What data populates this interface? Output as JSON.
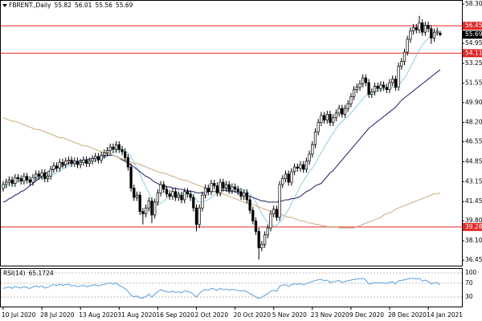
{
  "chart_data": {
    "type": "candlestick",
    "title": "FBRENT.,Daily",
    "categories": [
      "10 Jul 2020",
      null,
      null,
      null,
      null,
      null,
      null,
      null,
      null,
      null,
      null,
      null,
      null,
      "28 Jul 2020",
      null,
      null,
      null,
      null,
      null,
      null,
      null,
      null,
      null,
      null,
      null,
      null,
      "13 Aug 2020",
      null,
      null,
      null,
      null,
      null,
      null,
      null,
      null,
      null,
      null,
      null,
      null,
      "31 Aug 2020",
      null,
      null,
      null,
      null,
      null,
      null,
      null,
      null,
      null,
      null,
      null,
      null,
      "16 Sep 2020",
      null,
      null,
      null,
      null,
      null,
      null,
      null,
      null,
      null,
      null,
      null,
      null,
      "2 Oct 2020",
      null,
      null,
      null,
      null,
      null,
      null,
      null,
      null,
      null,
      null,
      null,
      null,
      "20 Oct 2020",
      null,
      null,
      null,
      null,
      null,
      null,
      null,
      null,
      null,
      null,
      null,
      null,
      "5 Nov 2020",
      null,
      null,
      null,
      null,
      null,
      null,
      null,
      null,
      null,
      null,
      null,
      null,
      "23 Nov 2020",
      null,
      null,
      null,
      null,
      null,
      null,
      null,
      null,
      null,
      null,
      null,
      null,
      "9 Dec 2020",
      null,
      null,
      null,
      null,
      null,
      null,
      null,
      null,
      null,
      null,
      null,
      null,
      "28 Dec 2020",
      null,
      null,
      null,
      null,
      null,
      null,
      null,
      null,
      null,
      null,
      null,
      null,
      "14 Jan 2021",
      null,
      null,
      null,
      null
    ],
    "open": [
      42.6,
      42.9,
      43.1,
      43.3,
      43.0,
      43.5,
      43.4,
      43.2,
      43.6,
      43.3,
      43.1,
      43.5,
      43.8,
      43.6,
      43.9,
      43.4,
      43.6,
      44.2,
      44.5,
      44.3,
      44.8,
      44.6,
      44.9,
      45.0,
      44.7,
      44.9,
      44.6,
      44.8,
      45.0,
      44.7,
      44.9,
      45.1,
      45.3,
      45.0,
      45.4,
      45.6,
      45.8,
      46.1,
      45.9,
      46.3,
      45.9,
      45.7,
      45.2,
      44.4,
      42.6,
      41.8,
      42.0,
      40.6,
      40.4,
      40.9,
      41.5,
      40.3,
      41.4,
      42.2,
      42.9,
      42.5,
      42.1,
      41.9,
      42.3,
      41.8,
      42.0,
      41.6,
      42.3,
      42.1,
      41.8,
      40.9,
      39.5,
      40.9,
      42.0,
      42.6,
      42.3,
      43.0,
      42.8,
      42.2,
      43.1,
      42.6,
      42.9,
      42.4,
      42.7,
      42.5,
      42.3,
      41.9,
      42.2,
      41.6,
      40.7,
      39.8,
      38.9,
      37.5,
      37.8,
      38.6,
      39.2,
      40.4,
      40.8,
      40.1,
      42.9,
      43.4,
      43.8,
      43.1,
      44.0,
      44.4,
      44.3,
      44.6,
      44.2,
      44.9,
      45.5,
      46.3,
      47.4,
      48.2,
      48.8,
      48.4,
      48.9,
      48.2,
      48.6,
      49.0,
      49.4,
      48.9,
      49.4,
      49.8,
      50.4,
      51.0,
      51.2,
      51.5,
      52.0,
      51.6,
      50.6,
      50.8,
      51.3,
      51.1,
      51.4,
      51.2,
      51.0,
      51.6,
      51.9,
      51.2,
      53.0,
      53.4,
      54.2,
      55.3,
      56.0,
      56.3,
      56.1,
      56.7,
      55.9,
      56.5,
      56.2,
      55.4,
      55.9,
      55.82
    ],
    "high": [
      43.2,
      43.4,
      43.6,
      43.6,
      43.8,
      43.8,
      43.7,
      43.9,
      43.9,
      43.6,
      43.8,
      44.1,
      44.1,
      44.2,
      44.2,
      43.9,
      44.5,
      44.8,
      44.8,
      45.1,
      45.1,
      45.2,
      45.3,
      45.3,
      45.2,
      45.2,
      45.1,
      45.3,
      45.3,
      45.2,
      45.4,
      45.6,
      45.6,
      45.7,
      45.9,
      46.1,
      46.4,
      46.4,
      46.6,
      46.6,
      46.2,
      46.0,
      45.5,
      44.7,
      42.9,
      42.3,
      42.3,
      40.9,
      41.2,
      41.8,
      41.8,
      41.7,
      42.5,
      43.2,
      43.2,
      42.8,
      42.4,
      42.6,
      42.6,
      42.3,
      42.3,
      42.6,
      42.6,
      42.4,
      42.1,
      41.2,
      41.2,
      42.3,
      42.9,
      42.9,
      43.3,
      43.3,
      43.1,
      43.4,
      43.4,
      43.2,
      43.2,
      43.0,
      43.0,
      42.8,
      42.6,
      42.5,
      42.5,
      41.9,
      41.0,
      40.1,
      39.2,
      38.1,
      38.9,
      39.5,
      40.7,
      41.1,
      41.1,
      43.2,
      43.7,
      44.1,
      44.1,
      44.3,
      44.7,
      44.7,
      44.9,
      44.9,
      45.2,
      45.8,
      46.6,
      47.7,
      48.5,
      49.1,
      49.1,
      49.2,
      49.2,
      48.9,
      49.3,
      49.7,
      49.7,
      49.7,
      50.1,
      50.7,
      51.3,
      51.5,
      51.8,
      52.3,
      52.3,
      51.9,
      51.1,
      51.6,
      51.6,
      51.7,
      51.7,
      51.5,
      51.9,
      52.2,
      52.2,
      53.3,
      53.7,
      54.5,
      55.6,
      56.3,
      56.6,
      56.6,
      57.3,
      57.0,
      56.8,
      56.8,
      56.5,
      56.2,
      56.3,
      56.01
    ],
    "low": [
      42.3,
      42.6,
      42.8,
      42.7,
      42.7,
      43.1,
      42.9,
      42.9,
      43.0,
      42.8,
      42.8,
      43.2,
      43.3,
      43.3,
      43.1,
      43.1,
      43.3,
      43.9,
      44.0,
      44.0,
      44.3,
      44.3,
      44.6,
      44.4,
      44.4,
      44.3,
      44.3,
      44.5,
      44.4,
      44.4,
      44.6,
      44.8,
      44.7,
      44.7,
      45.1,
      45.3,
      45.5,
      45.6,
      45.6,
      45.6,
      45.4,
      44.9,
      44.1,
      42.3,
      41.5,
      41.5,
      40.3,
      39.5,
      40.1,
      40.6,
      39.6,
      40.0,
      41.1,
      41.9,
      42.2,
      41.8,
      41.6,
      41.6,
      41.5,
      41.5,
      41.3,
      41.3,
      41.8,
      41.5,
      40.6,
      38.9,
      39.2,
      40.6,
      41.7,
      42.0,
      42.0,
      42.5,
      41.9,
      41.9,
      42.3,
      42.3,
      42.1,
      42.1,
      42.2,
      42.0,
      41.6,
      41.6,
      41.3,
      40.4,
      39.5,
      38.6,
      36.5,
      37.2,
      37.5,
      38.3,
      38.9,
      40.1,
      39.8,
      39.8,
      42.6,
      43.1,
      42.8,
      42.8,
      43.7,
      44.0,
      44.0,
      43.9,
      43.9,
      44.6,
      45.2,
      46.0,
      47.1,
      47.9,
      48.1,
      48.1,
      47.9,
      47.9,
      48.3,
      48.7,
      48.6,
      48.6,
      49.1,
      49.5,
      50.1,
      50.7,
      50.9,
      51.2,
      51.3,
      50.3,
      50.3,
      50.5,
      50.8,
      50.8,
      50.9,
      50.7,
      50.7,
      51.3,
      50.9,
      50.9,
      52.7,
      53.1,
      53.9,
      55.0,
      55.7,
      55.8,
      55.8,
      55.6,
      55.6,
      55.9,
      54.9,
      55.1,
      55.6,
      55.56
    ],
    "close": [
      42.9,
      43.1,
      43.3,
      43.0,
      43.5,
      43.4,
      43.2,
      43.6,
      43.3,
      43.1,
      43.5,
      43.8,
      43.6,
      43.9,
      43.4,
      43.6,
      44.2,
      44.5,
      44.3,
      44.8,
      44.6,
      44.9,
      45.0,
      44.7,
      44.9,
      44.6,
      44.8,
      45.0,
      44.7,
      44.9,
      45.1,
      45.3,
      45.0,
      45.4,
      45.6,
      45.8,
      46.1,
      45.9,
      46.3,
      45.9,
      45.7,
      45.2,
      44.4,
      42.6,
      41.8,
      42.0,
      40.6,
      40.4,
      40.9,
      41.5,
      40.3,
      41.4,
      42.2,
      42.9,
      42.5,
      42.1,
      41.9,
      42.3,
      41.8,
      42.0,
      41.6,
      42.3,
      42.1,
      41.8,
      40.9,
      39.5,
      40.9,
      42.0,
      42.6,
      42.3,
      43.0,
      42.8,
      42.2,
      43.1,
      42.6,
      42.9,
      42.4,
      42.7,
      42.5,
      42.3,
      41.9,
      42.2,
      41.6,
      40.7,
      39.8,
      38.9,
      37.5,
      37.8,
      38.6,
      39.2,
      40.4,
      40.8,
      40.1,
      42.9,
      43.4,
      43.8,
      43.1,
      44.0,
      44.4,
      44.3,
      44.6,
      44.2,
      44.9,
      45.5,
      46.3,
      47.4,
      48.2,
      48.8,
      48.4,
      48.9,
      48.2,
      48.6,
      49.0,
      49.4,
      48.9,
      49.4,
      49.8,
      50.4,
      51.0,
      51.2,
      51.5,
      52.0,
      51.6,
      50.6,
      50.8,
      51.3,
      51.1,
      51.4,
      51.2,
      51.0,
      51.6,
      51.9,
      51.2,
      53.0,
      53.4,
      54.2,
      55.3,
      56.0,
      56.3,
      56.1,
      56.7,
      55.9,
      56.5,
      56.2,
      55.4,
      55.9,
      56.0,
      55.69
    ],
    "series": [
      {
        "color": "#8ccfdc",
        "values": [
          42.6,
          42.7,
          42.8,
          42.9,
          43.0,
          43.1,
          43.2,
          43.3,
          43.3,
          43.3,
          43.3,
          43.4,
          43.4,
          43.5,
          43.5,
          43.6,
          43.7,
          43.8,
          43.9,
          44.1,
          44.2,
          44.4,
          44.5,
          44.6,
          44.7,
          44.7,
          44.8,
          44.8,
          44.8,
          44.8,
          44.9,
          44.9,
          45.0,
          45.1,
          45.2,
          45.3,
          45.5,
          45.6,
          45.8,
          45.9,
          45.9,
          45.8,
          45.6,
          45.3,
          44.8,
          44.3,
          43.8,
          43.2,
          42.7,
          42.2,
          41.6,
          41.3,
          41.2,
          41.3,
          41.5,
          41.7,
          41.9,
          42.1,
          42.2,
          42.1,
          42.1,
          42.1,
          42.1,
          42.0,
          41.9,
          41.6,
          41.4,
          41.4,
          41.5,
          41.6,
          41.8,
          42.0,
          42.2,
          42.4,
          42.5,
          42.6,
          42.7,
          42.7,
          42.6,
          42.6,
          42.5,
          42.4,
          42.3,
          42.1,
          41.8,
          41.4,
          40.9,
          40.4,
          40.0,
          39.7,
          39.5,
          39.4,
          39.4,
          39.7,
          40.0,
          40.4,
          40.8,
          41.3,
          41.8,
          42.3,
          42.8,
          43.2,
          43.6,
          44.0,
          44.3,
          44.7,
          45.2,
          45.6,
          46.1,
          46.5,
          46.9,
          47.3,
          47.7,
          48.0,
          48.3,
          48.5,
          48.7,
          49.0,
          49.3,
          49.6,
          49.9,
          50.2,
          50.5,
          50.6,
          50.7,
          50.8,
          50.9,
          51.0,
          51.1,
          51.1,
          51.1,
          51.2,
          51.2,
          51.4,
          51.7,
          52.0,
          52.4,
          52.9,
          53.4,
          53.9,
          54.4,
          54.8,
          55.1,
          55.4,
          55.6,
          55.7,
          55.8,
          55.9
        ]
      },
      {
        "color": "#1c1c6a",
        "values": [
          41.4,
          41.5,
          41.7,
          41.8,
          42.0,
          42.1,
          42.3,
          42.4,
          42.6,
          42.8,
          43.0,
          43.2,
          43.4,
          43.6,
          43.8,
          44.0,
          44.1,
          44.2,
          44.3,
          44.4,
          44.5,
          44.6,
          44.7,
          44.8,
          44.8,
          44.9,
          44.9,
          45.0,
          45.0,
          45.1,
          45.1,
          45.2,
          45.2,
          45.3,
          45.3,
          45.4,
          45.4,
          45.4,
          45.3,
          45.2,
          45.0,
          44.9,
          44.7,
          44.6,
          44.4,
          44.2,
          44.0,
          43.8,
          43.6,
          43.5,
          43.3,
          43.1,
          43.0,
          42.8,
          42.8,
          42.7,
          42.7,
          42.6,
          42.6,
          42.5,
          42.5,
          42.4,
          42.4,
          42.3,
          42.3,
          42.2,
          42.2,
          42.2,
          42.2,
          42.3,
          42.3,
          42.3,
          42.4,
          42.4,
          42.4,
          42.4,
          42.3,
          42.3,
          42.3,
          42.2,
          42.2,
          42.1,
          42.0,
          41.9,
          41.8,
          41.7,
          41.6,
          41.5,
          41.5,
          41.4,
          41.4,
          41.4,
          41.4,
          41.5,
          41.5,
          41.6,
          41.6,
          41.7,
          41.7,
          41.8,
          41.9,
          42.1,
          42.3,
          42.4,
          42.6,
          42.8,
          42.9,
          43.0,
          43.3,
          43.6,
          43.9,
          44.1,
          44.4,
          44.7,
          45.0,
          45.3,
          45.6,
          45.9,
          46.2,
          46.5,
          46.8,
          47.1,
          47.4,
          47.7,
          47.9,
          48.1,
          48.3,
          48.5,
          48.7,
          48.9,
          49.1,
          49.3,
          49.5,
          49.8,
          50.1,
          50.3,
          50.5,
          50.7,
          50.9,
          51.1,
          51.3,
          51.5,
          51.7,
          51.9,
          52.1,
          52.3,
          52.5,
          52.7
        ]
      },
      {
        "color": "#c9ab7e",
        "values": [
          48.6,
          48.5,
          48.4,
          48.3,
          48.3,
          48.2,
          48.1,
          48.0,
          47.9,
          47.8,
          47.7,
          47.6,
          47.6,
          47.5,
          47.4,
          47.3,
          47.2,
          47.1,
          47.0,
          46.9,
          46.9,
          46.8,
          46.7,
          46.6,
          46.5,
          46.4,
          46.3,
          46.2,
          46.2,
          46.1,
          46.0,
          45.9,
          45.8,
          45.7,
          45.6,
          45.5,
          45.5,
          45.4,
          45.3,
          45.2,
          45.1,
          45.0,
          44.9,
          44.8,
          44.7,
          44.7,
          44.6,
          44.5,
          44.4,
          44.3,
          44.2,
          44.1,
          44.0,
          43.9,
          43.9,
          43.8,
          43.7,
          43.6,
          43.5,
          43.4,
          43.3,
          43.3,
          43.2,
          43.1,
          43.0,
          42.9,
          42.8,
          42.7,
          42.6,
          42.5,
          42.4,
          42.3,
          42.2,
          42.1,
          42.1,
          42.0,
          41.9,
          41.8,
          41.7,
          41.6,
          41.5,
          41.4,
          41.3,
          41.2,
          41.2,
          41.1,
          41.0,
          40.9,
          40.8,
          40.7,
          40.6,
          40.6,
          40.5,
          40.4,
          40.3,
          40.2,
          40.1,
          40.1,
          40.0,
          39.9,
          39.8,
          39.8,
          39.7,
          39.6,
          39.6,
          39.5,
          39.5,
          39.4,
          39.4,
          39.3,
          39.3,
          39.3,
          39.3,
          39.2,
          39.2,
          39.2,
          39.2,
          39.2,
          39.2,
          39.3,
          39.4,
          39.5,
          39.6,
          39.7,
          39.8,
          39.9,
          40.0,
          40.1,
          40.3,
          40.4,
          40.5,
          40.6,
          40.8,
          40.9,
          41.0,
          41.1,
          41.2,
          41.3,
          41.4,
          41.5,
          41.6,
          41.7,
          41.8,
          41.9,
          42.0,
          42.1,
          42.1,
          42.2
        ]
      }
    ],
    "hlines": [
      {
        "value": 56.45,
        "color": "#e02828"
      },
      {
        "value": 54.11,
        "color": "#e02828"
      },
      {
        "value": 39.28,
        "color": "#e02828"
      }
    ],
    "ylim": [
      36.05,
      58.65
    ],
    "yticks": [
      {
        "value": 58.3,
        "label": "58.30"
      },
      54.95,
      53.25,
      51.55,
      {
        "value": 49.9,
        "label": "49.90"
      },
      {
        "value": 48.2,
        "label": "48.20"
      },
      46.55,
      44.85,
      43.15,
      41.45,
      {
        "value": 39.8,
        "label": "39.80"
      },
      {
        "value": 38.1,
        "label": "38.10"
      },
      36.45
    ],
    "rsi": {
      "label": "RSI(14)",
      "color": "#5a9fde",
      "ylim": [
        0,
        100
      ],
      "yticks": [
        100,
        70,
        30
      ],
      "values": [
        55,
        57,
        59,
        55,
        60,
        58,
        56,
        60,
        57,
        55,
        59,
        62,
        59,
        62,
        56,
        58,
        63,
        66,
        63,
        67,
        64,
        66,
        67,
        62,
        64,
        60,
        62,
        64,
        60,
        62,
        64,
        66,
        62,
        65,
        67,
        69,
        71,
        67,
        71,
        63,
        60,
        54,
        46,
        35,
        31,
        33,
        27,
        27,
        32,
        38,
        30,
        38,
        45,
        51,
        48,
        45,
        44,
        47,
        43,
        45,
        42,
        48,
        46,
        44,
        38,
        30,
        40,
        48,
        52,
        50,
        55,
        53,
        49,
        55,
        51,
        53,
        50,
        52,
        51,
        49,
        47,
        49,
        45,
        40,
        35,
        31,
        26,
        29,
        35,
        39,
        47,
        50,
        46,
        62,
        64,
        66,
        60,
        66,
        68,
        67,
        69,
        65,
        69,
        72,
        75,
        78,
        80,
        81,
        77,
        79,
        72,
        74,
        76,
        78,
        72,
        75,
        77,
        79,
        81,
        82,
        83,
        84,
        79,
        68,
        69,
        72,
        70,
        72,
        71,
        69,
        73,
        74,
        68,
        77,
        78,
        80,
        82,
        84,
        84,
        82,
        84,
        76,
        79,
        75,
        68,
        71,
        72,
        65.1724
      ]
    }
  }
}
